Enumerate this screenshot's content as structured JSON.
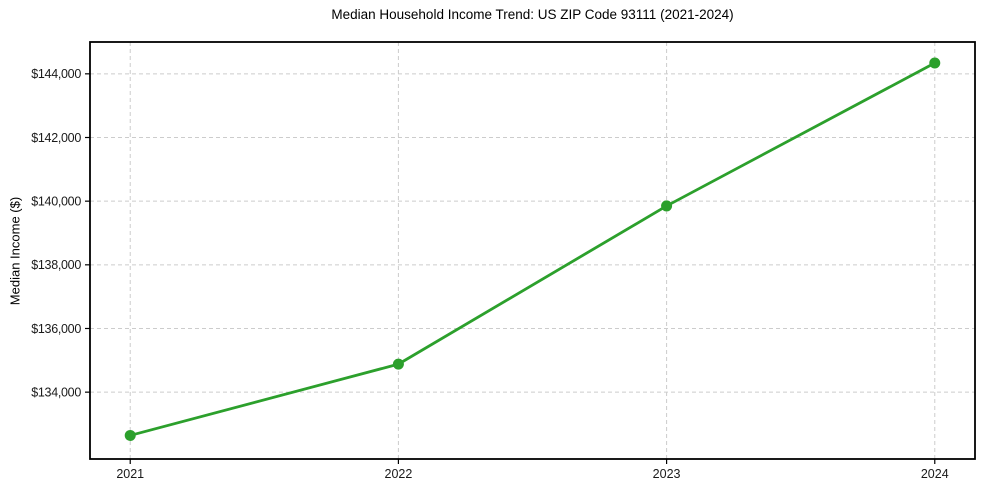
{
  "chart_data": {
    "type": "line",
    "title": "Median Household Income Trend: US ZIP Code 93111 (2021-2024)",
    "xlabel": "",
    "ylabel": "Median Income ($)",
    "x": [
      2021,
      2022,
      2023,
      2024
    ],
    "y": [
      132640,
      134880,
      139850,
      144340
    ],
    "xlim": [
      2020.85,
      2024.15
    ],
    "ylim": [
      131900,
      145000
    ],
    "xticks": [
      2021,
      2022,
      2023,
      2024
    ],
    "xtick_labels": [
      "2021",
      "2022",
      "2023",
      "2024"
    ],
    "yticks": [
      134000,
      136000,
      138000,
      140000,
      142000,
      144000
    ],
    "ytick_labels": [
      "$134,000",
      "$136,000",
      "$138,000",
      "$140,000",
      "$142,000",
      "$144,000"
    ],
    "grid": true,
    "grid_style": "dashed",
    "legend": "none",
    "marker": "circle",
    "colors": {
      "line": "#2ca02c",
      "marker": "#2ca02c",
      "grid": "#cccccc",
      "spine": "#000000",
      "text": "#1a1a1a",
      "background": "#ffffff"
    }
  }
}
